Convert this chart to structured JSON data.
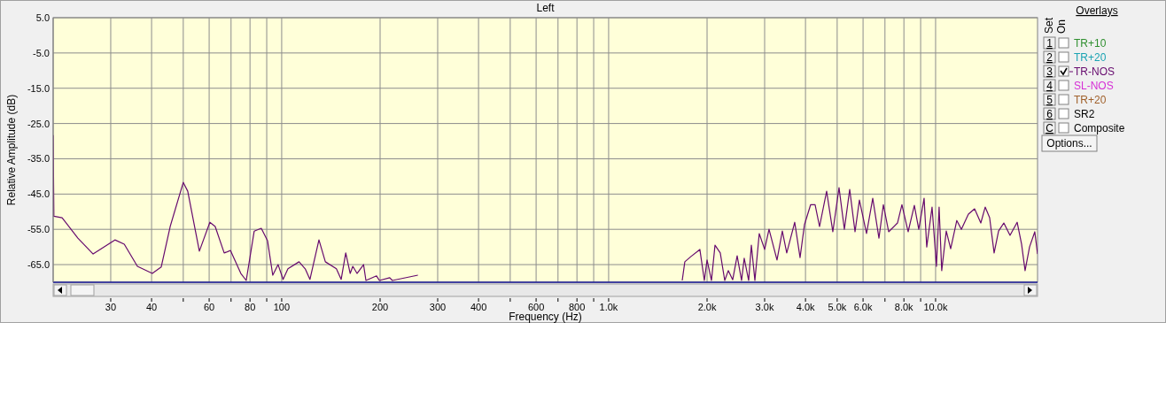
{
  "chart_data": {
    "type": "line",
    "title": "Left",
    "xlabel": "Frequency (Hz)",
    "ylabel": "Relative Amplitude (dB)",
    "log": "x",
    "grid": true,
    "legend": "right",
    "legend_title": "Overlays",
    "xlim": [
      20,
      20500
    ],
    "ylim": [
      -70,
      5
    ],
    "xticks": [
      {
        "value": 30,
        "label": "30"
      },
      {
        "value": 40,
        "label": "40"
      },
      {
        "value": 50,
        "label": null
      },
      {
        "value": 60,
        "label": "60"
      },
      {
        "value": 70,
        "label": null
      },
      {
        "value": 80,
        "label": "80"
      },
      {
        "value": 90,
        "label": null
      },
      {
        "value": 100,
        "label": "100"
      },
      {
        "value": 200,
        "label": "200"
      },
      {
        "value": 300,
        "label": "300"
      },
      {
        "value": 400,
        "label": "400"
      },
      {
        "value": 500,
        "label": null
      },
      {
        "value": 600,
        "label": "600"
      },
      {
        "value": 700,
        "label": null
      },
      {
        "value": 800,
        "label": "800"
      },
      {
        "value": 900,
        "label": null
      },
      {
        "value": 1000,
        "label": "1.0k"
      },
      {
        "value": 2000,
        "label": "2.0k"
      },
      {
        "value": 3000,
        "label": "3.0k"
      },
      {
        "value": 4000,
        "label": "4.0k"
      },
      {
        "value": 5000,
        "label": "5.0k"
      },
      {
        "value": 6000,
        "label": "6.0k"
      },
      {
        "value": 7000,
        "label": null
      },
      {
        "value": 8000,
        "label": "8.0k"
      },
      {
        "value": 9000,
        "label": null
      },
      {
        "value": 10000,
        "label": "10.0k"
      }
    ],
    "yticks": [
      {
        "value": 5,
        "label": "5.0"
      },
      {
        "value": -5,
        "label": "-5.0"
      },
      {
        "value": -15,
        "label": "-15.0"
      },
      {
        "value": -25,
        "label": "-25.0"
      },
      {
        "value": -35,
        "label": "-35.0"
      },
      {
        "value": -45,
        "label": "-45.0"
      },
      {
        "value": -55,
        "label": "-55.0"
      },
      {
        "value": -65,
        "label": "-65.0"
      }
    ],
    "annotations": [
      "Set",
      "On",
      "1",
      "TR+10",
      "2",
      "TR+20",
      "3",
      "4",
      "SL-NOS",
      "5",
      "TR+20",
      "6",
      "SR2",
      "C",
      "Composite",
      "Options..."
    ],
    "series": [
      {
        "name": "TR-NOS",
        "color": "#660a6e",
        "x": [
          20,
          20.1,
          21.3,
          23.8,
          26.5,
          30.9,
          33,
          36.2,
          40.2,
          42.8,
          45.6,
          50,
          51.6,
          56,
          60.3,
          62.6,
          66.7,
          69.7,
          75,
          77.9,
          82.4,
          86.6,
          90.5,
          93.9,
          97.5,
          101,
          104.5,
          113,
          118,
          122,
          130,
          136,
          147,
          152,
          157,
          162,
          165,
          170,
          178,
          181,
          195,
          199,
          214,
          218,
          261,
          266,
          1650,
          1679,
          1710,
          1786,
          1901,
          1962,
          2000,
          2063,
          2115,
          2195,
          2265,
          2322,
          2396,
          2472,
          2550,
          2598,
          2681,
          2732,
          2801,
          2888,
          3000,
          3094,
          3273,
          3398,
          3505,
          3708,
          3850,
          3971,
          4148,
          4280,
          4416,
          4642,
          4849,
          5066,
          5260,
          5461,
          5670,
          5848,
          6148,
          6423,
          6710,
          6922,
          7186,
          7646,
          7889,
          8241,
          8610,
          8882,
          9222,
          9395,
          9754,
          10060,
          10250,
          10440,
          10780,
          11120,
          11610,
          11990,
          12600,
          13160,
          13750,
          14180,
          14630,
          15100,
          15580,
          16170,
          16890,
          17760,
          18320,
          18780,
          19380,
          20110,
          20500
        ],
        "values": [
          -28.3,
          -51.3,
          -51.7,
          -57.5,
          -62,
          -58,
          -59.2,
          -65.5,
          -67.5,
          -65.7,
          -54.2,
          -41.7,
          -44.2,
          -61.2,
          -53,
          -54.2,
          -61.7,
          -61,
          -67.5,
          -69.5,
          -55.5,
          -54.7,
          -58.2,
          -68,
          -65,
          -69.2,
          -66.2,
          -64.2,
          -66.2,
          -69.2,
          -58,
          -64.2,
          -66.2,
          -69.2,
          -61.7,
          -67.5,
          -65.5,
          -67.5,
          -65,
          -69.5,
          -68.2,
          -69.5,
          -68.7,
          -69.5,
          -68,
          null,
          null,
          -69.5,
          -64.2,
          -62.7,
          -60.7,
          -69.5,
          -63.7,
          -69.5,
          -59.5,
          -61.7,
          -69.5,
          -66.7,
          -69.3,
          -62.5,
          -69.5,
          -63.2,
          -69.5,
          -59.5,
          -69.5,
          -56.2,
          -60.7,
          -55,
          -63.7,
          -55.5,
          -61.7,
          -53,
          -63,
          -53.7,
          -48,
          -48,
          -54.2,
          -44.2,
          -55.7,
          -43.2,
          -55,
          -43.7,
          -55.7,
          -46.7,
          -56.2,
          -46.2,
          -57.5,
          -48,
          -55.7,
          -53.2,
          -48,
          -55.7,
          -48.2,
          -55,
          -46.2,
          -60,
          -48.7,
          -65.5,
          -48.7,
          -66.7,
          -55.5,
          -60.5,
          -52.5,
          -55,
          -50.7,
          -49.2,
          -53.2,
          -48.7,
          -51.7,
          -61.7,
          -55.5,
          -53.2,
          -56.7,
          -53,
          -59.2,
          -66.7,
          -60,
          -55.7,
          -62
        ]
      }
    ]
  }
}
